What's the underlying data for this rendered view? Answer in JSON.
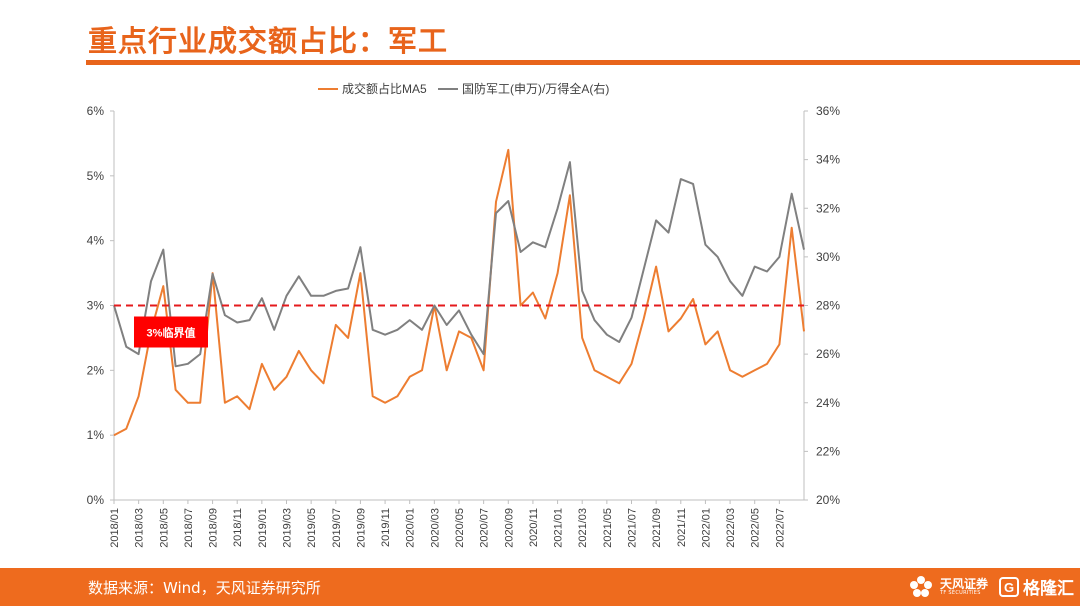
{
  "header": {
    "title": "重点行业成交额占比：军工"
  },
  "footer": {
    "source": "数据来源：Wind，天风证券研究所",
    "brand": "天风证券",
    "brand_en": "TF SECURITIES",
    "watermark": "格隆汇",
    "watermark_icon": "G"
  },
  "colors": {
    "accent": "#e8641b",
    "footer": "#ee6b1e",
    "series1": "#ed7d31",
    "series2": "#808080",
    "threshold": "#e41a1c"
  },
  "chart_data": {
    "type": "line",
    "x_ticks": [
      "2018/01",
      "2018/03",
      "2018/05",
      "2018/07",
      "2018/09",
      "2018/11",
      "2019/01",
      "2019/03",
      "2019/05",
      "2019/07",
      "2019/09",
      "2019/11",
      "2020/01",
      "2020/03",
      "2020/05",
      "2020/07",
      "2020/09",
      "2020/11",
      "2021/01",
      "2021/03",
      "2021/05",
      "2021/07",
      "2021/09",
      "2021/11",
      "2022/01",
      "2022/03",
      "2022/05",
      "2022/07"
    ],
    "y_left": {
      "ticks": [
        "0%",
        "1%",
        "2%",
        "3%",
        "4%",
        "5%",
        "6%"
      ],
      "min": 0,
      "max": 6
    },
    "y_right": {
      "ticks": [
        "20%",
        "22%",
        "24%",
        "26%",
        "28%",
        "30%",
        "32%",
        "34%",
        "36%"
      ],
      "min": 20,
      "max": 36
    },
    "series": [
      {
        "name": "成交额占比MA5",
        "axis": "left",
        "color": "#ed7d31",
        "x": [
          "2018/01",
          "2018/02",
          "2018/03",
          "2018/04",
          "2018/05",
          "2018/06",
          "2018/07",
          "2018/08",
          "2018/09",
          "2018/10",
          "2018/11",
          "2018/12",
          "2019/01",
          "2019/02",
          "2019/03",
          "2019/04",
          "2019/05",
          "2019/06",
          "2019/07",
          "2019/08",
          "2019/09",
          "2019/10",
          "2019/11",
          "2019/12",
          "2020/01",
          "2020/02",
          "2020/03",
          "2020/04",
          "2020/05",
          "2020/06",
          "2020/07",
          "2020/08",
          "2020/09",
          "2020/10",
          "2020/11",
          "2020/12",
          "2021/01",
          "2021/02",
          "2021/03",
          "2021/04",
          "2021/05",
          "2021/06",
          "2021/07",
          "2021/08",
          "2021/09",
          "2021/10",
          "2021/11",
          "2021/12",
          "2022/01",
          "2022/02",
          "2022/03",
          "2022/04",
          "2022/05",
          "2022/06",
          "2022/07",
          "2022/08",
          "2022/09"
        ],
        "y": [
          1.0,
          1.1,
          1.6,
          2.6,
          3.3,
          1.7,
          1.5,
          1.5,
          3.5,
          1.5,
          1.6,
          1.4,
          2.1,
          1.7,
          1.9,
          2.3,
          2.0,
          1.8,
          2.7,
          2.5,
          3.5,
          1.6,
          1.5,
          1.6,
          1.9,
          2.0,
          3.0,
          2.0,
          2.6,
          2.5,
          2.0,
          4.6,
          5.4,
          3.0,
          3.2,
          2.8,
          3.5,
          4.7,
          2.5,
          2.0,
          1.9,
          1.8,
          2.1,
          2.8,
          3.6,
          2.6,
          2.8,
          3.1,
          2.4,
          2.6,
          2.0,
          1.9,
          2.0,
          2.1,
          2.4,
          4.2,
          2.6
        ]
      },
      {
        "name": "国防军工(申万)/万得全A(右)",
        "axis": "right",
        "color": "#808080",
        "x": [
          "2018/01",
          "2018/02",
          "2018/03",
          "2018/04",
          "2018/05",
          "2018/06",
          "2018/07",
          "2018/08",
          "2018/09",
          "2018/10",
          "2018/11",
          "2018/12",
          "2019/01",
          "2019/02",
          "2019/03",
          "2019/04",
          "2019/05",
          "2019/06",
          "2019/07",
          "2019/08",
          "2019/09",
          "2019/10",
          "2019/11",
          "2019/12",
          "2020/01",
          "2020/02",
          "2020/03",
          "2020/04",
          "2020/05",
          "2020/06",
          "2020/07",
          "2020/08",
          "2020/09",
          "2020/10",
          "2020/11",
          "2020/12",
          "2021/01",
          "2021/02",
          "2021/03",
          "2021/04",
          "2021/05",
          "2021/06",
          "2021/07",
          "2021/08",
          "2021/09",
          "2021/10",
          "2021/11",
          "2021/12",
          "2022/01",
          "2022/02",
          "2022/03",
          "2022/04",
          "2022/05",
          "2022/06",
          "2022/07",
          "2022/08",
          "2022/09"
        ],
        "y": [
          28.0,
          26.3,
          26.0,
          29.0,
          30.3,
          25.5,
          25.6,
          26.0,
          29.3,
          27.6,
          27.3,
          27.4,
          28.3,
          27.0,
          28.4,
          29.2,
          28.4,
          28.4,
          28.6,
          28.7,
          30.4,
          27.0,
          26.8,
          27.0,
          27.4,
          27.0,
          28.0,
          27.2,
          27.8,
          26.8,
          26.0,
          31.8,
          32.3,
          30.2,
          30.6,
          30.4,
          32.0,
          33.9,
          28.6,
          27.4,
          26.8,
          26.5,
          27.5,
          29.5,
          31.5,
          31.0,
          33.2,
          33.0,
          30.5,
          30.0,
          29.0,
          28.4,
          29.6,
          29.4,
          30.0,
          32.6,
          30.3
        ]
      }
    ],
    "threshold": {
      "value": 3,
      "axis": "left",
      "label": "3%临界值"
    },
    "legend_position": "top-center",
    "grid": false
  }
}
